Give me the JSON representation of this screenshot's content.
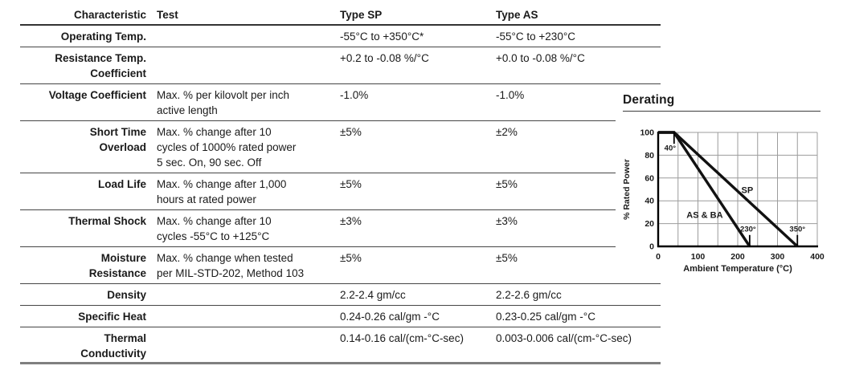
{
  "table": {
    "headers": [
      "Characteristic",
      "Test",
      "Type SP",
      "Type AS"
    ],
    "rows": [
      {
        "characteristic": "Operating Temp.",
        "test": "",
        "type_sp": "-55°C to +350°C*",
        "type_as": "-55°C to +230°C",
        "short_rule": false
      },
      {
        "characteristic": "Resistance Temp.\nCoefficient",
        "test": "",
        "type_sp": "+0.2 to -0.08 %/°C",
        "type_as": "+0.0 to -0.08 %/°C",
        "short_rule": false
      },
      {
        "characteristic": "Voltage Coefficient",
        "test": "Max. % per kilovolt per inch\nactive length",
        "type_sp": "-1.0%",
        "type_as": "-1.0%",
        "short_rule": true
      },
      {
        "characteristic": "Short Time\nOverload",
        "test": "Max. % change after 10\ncycles of 1000% rated power\n5 sec. On, 90 sec. Off",
        "type_sp": "±5%",
        "type_as": "±2%",
        "short_rule": true
      },
      {
        "characteristic": "Load Life",
        "test": "Max. % change after 1,000\nhours at rated power",
        "type_sp": "±5%",
        "type_as": "±5%",
        "short_rule": true
      },
      {
        "characteristic": "Thermal Shock",
        "test": "Max. % change after 10\ncycles -55°C to +125°C",
        "type_sp": "±3%",
        "type_as": "±3%",
        "short_rule": true
      },
      {
        "characteristic": "Moisture\nResistance",
        "test": "Max. % change when tested\nper MIL-STD-202, Method 103",
        "type_sp": "±5%",
        "type_as": "±5%",
        "short_rule": false
      },
      {
        "characteristic": "Density",
        "test": "",
        "type_sp": "2.2-2.4 gm/cc",
        "type_as": "2.2-2.6 gm/cc",
        "short_rule": false
      },
      {
        "characteristic": "Specific Heat",
        "test": "",
        "type_sp": "0.24-0.26 cal/gm -°C",
        "type_as": "0.23-0.25 cal/gm -°C",
        "short_rule": false
      },
      {
        "characteristic": "Thermal\nConductivity",
        "test": "",
        "type_sp": "0.14-0.16 cal/(cm-°C-sec)",
        "type_as": "0.003-0.006 cal/(cm-°C-sec)",
        "short_rule": false
      }
    ]
  },
  "chart_data": {
    "type": "line",
    "title": "Derating",
    "xlabel": "Ambient Temperature (°C)",
    "ylabel": "% Rated Power",
    "xlim": [
      0,
      400
    ],
    "ylim": [
      0,
      100
    ],
    "xticks": [
      0,
      100,
      200,
      300,
      400
    ],
    "yticks": [
      0,
      20,
      40,
      60,
      80,
      100
    ],
    "grid": true,
    "grid_step_x": 50,
    "grid_step_y": 20,
    "grid_color": "#9c9c9c",
    "line_color": "#111111",
    "series": [
      {
        "name": "SP",
        "points": [
          [
            0,
            100
          ],
          [
            40,
            100
          ],
          [
            350,
            0
          ]
        ],
        "label_at": [
          224,
          47
        ]
      },
      {
        "name": "AS & BA",
        "points": [
          [
            0,
            100
          ],
          [
            40,
            100
          ],
          [
            230,
            0
          ]
        ],
        "label_at": [
          117,
          25
        ]
      }
    ],
    "point_markers": [
      {
        "label": "40°",
        "x": 40,
        "tick_from": 100,
        "tick_to": 90,
        "label_at": [
          30,
          84
        ]
      },
      {
        "label": "230°",
        "x": 230,
        "tick_from": 0,
        "tick_to": 10,
        "label_at": [
          226,
          13
        ]
      },
      {
        "label": "350°",
        "x": 350,
        "tick_from": 0,
        "tick_to": 10,
        "label_at": [
          350,
          13
        ]
      }
    ]
  }
}
